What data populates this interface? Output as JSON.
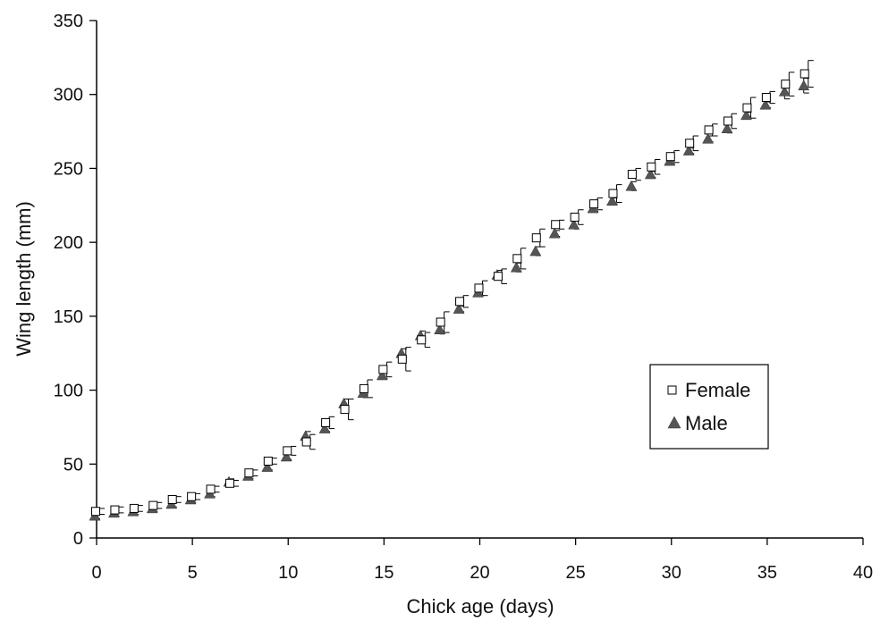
{
  "chart_data": {
    "type": "scatter",
    "xlabel": "Chick age (days)",
    "ylabel": "Wing length (mm)",
    "xlim": [
      0,
      40
    ],
    "ylim": [
      0,
      350
    ],
    "x_ticks": [
      "0",
      "5",
      "10",
      "15",
      "20",
      "25",
      "30",
      "35",
      "40"
    ],
    "y_ticks": [
      "0",
      "50",
      "100",
      "150",
      "200",
      "250",
      "300",
      "350"
    ],
    "grid": false,
    "legend_position": "right-middle",
    "error_bars": true,
    "series": [
      {
        "name": "Female",
        "marker": "open-square",
        "color": "#000000",
        "x": [
          0,
          1,
          2,
          3,
          4,
          5,
          6,
          7,
          8,
          9,
          10,
          11,
          12,
          13,
          14,
          15,
          16,
          17,
          18,
          19,
          20,
          21,
          22,
          23,
          24,
          25,
          26,
          27,
          28,
          29,
          30,
          31,
          32,
          33,
          34,
          35,
          36,
          37
        ],
        "y": [
          18,
          19,
          20,
          22,
          26,
          28,
          33,
          37,
          44,
          52,
          59,
          65,
          78,
          87,
          101,
          114,
          121,
          134,
          146,
          160,
          169,
          177,
          189,
          203,
          212,
          217,
          226,
          233,
          246,
          251,
          258,
          267,
          276,
          282,
          291,
          298,
          307,
          314
        ],
        "error": [
          2,
          2,
          2,
          2,
          2,
          2,
          2,
          2,
          2,
          2,
          3,
          5,
          4,
          7,
          6,
          5,
          8,
          5,
          7,
          4,
          5,
          5,
          7,
          6,
          3,
          5,
          4,
          6,
          4,
          5,
          4,
          5,
          4,
          5,
          7,
          4,
          8,
          9
        ]
      },
      {
        "name": "Male",
        "marker": "filled-triangle",
        "color": "#555555",
        "x": [
          0,
          1,
          2,
          3,
          4,
          5,
          6,
          7,
          8,
          9,
          10,
          11,
          12,
          13,
          14,
          15,
          16,
          17,
          18,
          19,
          20,
          21,
          22,
          23,
          24,
          25,
          26,
          27,
          28,
          29,
          30,
          31,
          32,
          33,
          34,
          35,
          36,
          37
        ],
        "y": [
          15,
          17,
          18,
          20,
          23,
          26,
          30,
          38,
          42,
          48,
          55,
          69,
          74,
          91,
          98,
          110,
          125,
          137,
          141,
          155,
          166,
          178,
          183,
          194,
          206,
          212,
          223,
          228,
          238,
          246,
          255,
          262,
          270,
          277,
          286,
          293,
          302,
          306
        ],
        "error": [
          2,
          2,
          2,
          2,
          2,
          2,
          2,
          2,
          2,
          2,
          2,
          3,
          2,
          3,
          3,
          2,
          3,
          3,
          3,
          2,
          2,
          3,
          3,
          3,
          2,
          3,
          2,
          2,
          3,
          2,
          2,
          2,
          2,
          3,
          2,
          2,
          5,
          5
        ]
      }
    ]
  }
}
